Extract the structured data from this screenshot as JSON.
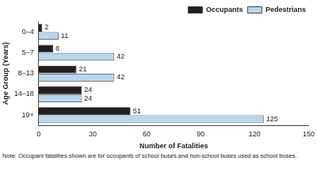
{
  "chart_data": {
    "type": "bar",
    "orientation": "horizontal",
    "categories": [
      "0–4",
      "5–7",
      "8–13",
      "14–18",
      "19+"
    ],
    "series": [
      {
        "name": "Occupants",
        "color": "#231f20",
        "values": [
          2,
          8,
          21,
          24,
          51
        ]
      },
      {
        "name": "Pedestrians",
        "color": "#b5d8f0",
        "values": [
          11,
          42,
          42,
          24,
          125
        ]
      }
    ],
    "x_label": "Number of Fatalities",
    "y_label": "Age Group (Years)",
    "xlim": [
      0,
      150
    ],
    "xticks": [
      0,
      30,
      60,
      90,
      120,
      150
    ],
    "grid": false,
    "legend": "top-right",
    "data_labels": true,
    "annotations": [
      "Note: Occupant fatalities shown are for occupants of school buses and non-school buses used as school buses."
    ]
  }
}
